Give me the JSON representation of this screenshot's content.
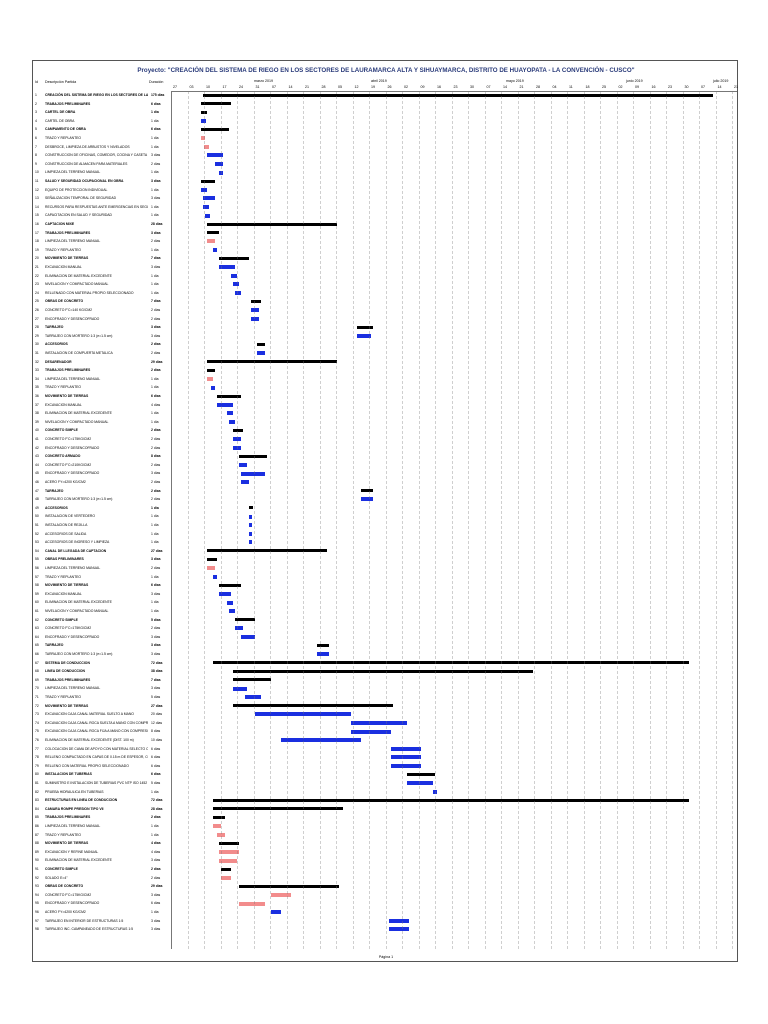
{
  "title": "Proyecto: \"CREACIÓN DEL SISTEMA DE RIEGO EN LOS SECTORES DE LAURAMARCA ALTA Y SIHUAYMARCA, DISTRITO DE HUAYOPATA - LA CONVENCIÓN - CUSCO\"",
  "columns": {
    "id": "Id",
    "name": "Descripción Partida",
    "duration": "Duración"
  },
  "months": [
    "marzo 2019",
    "abril 2019",
    "mayo 2019",
    "junio 2019",
    "julio 2019"
  ],
  "days": [
    "27",
    "03",
    "10",
    "17",
    "24",
    "31",
    "07",
    "14",
    "21",
    "28",
    "05",
    "12",
    "19",
    "26",
    "02",
    "09",
    "16",
    "23",
    "30",
    "07",
    "14",
    "21",
    "28",
    "04",
    "11",
    "18",
    "25",
    "02",
    "09",
    "16",
    "23",
    "30",
    "07",
    "14",
    "21"
  ],
  "footer": "Página 1",
  "colors": {
    "task": "#1a2fe0",
    "critical": "#f28c8c",
    "summary": "#000000"
  },
  "rows": [
    {
      "id": "1",
      "name": "CREACIÓN DEL SISTEMA DE RIEGO EN LOS SECTORES DE LAURAMARCA ALTA Y SIHUAYMARCA",
      "dur": "175 días",
      "summary": true
    },
    {
      "id": "2",
      "name": "TRABAJOS PRELIMINARES",
      "dur": "6 días",
      "summary": true
    },
    {
      "id": "3",
      "name": "CARTEL DE OBRA",
      "dur": "1 día",
      "summary": true
    },
    {
      "id": "4",
      "name": "CARTEL DE OBRA",
      "dur": "1 día"
    },
    {
      "id": "5",
      "name": "CAMPAMENTO DE OBRA",
      "dur": "6 días",
      "summary": true
    },
    {
      "id": "6",
      "name": "TRAZO Y REPLANTEO",
      "dur": "1 día"
    },
    {
      "id": "7",
      "name": "DESBROCE, LIMPIEZA DE ARBUSTOS Y NIVELADOS",
      "dur": "1 día"
    },
    {
      "id": "8",
      "name": "CONSTRUCCION DE OFICINAS, COMEDOR, COCINA Y CASETA DE GUARDIANIA",
      "dur": "3 días"
    },
    {
      "id": "9",
      "name": "CONSTRUCCION DE ALMACEN PARA MATERIALES",
      "dur": "2 días"
    },
    {
      "id": "10",
      "name": "LIMPIEZA DEL TERRENO MANUAL",
      "dur": "1 día"
    },
    {
      "id": "11",
      "name": "SALUD Y SEGURIDAD OCUPACIONAL EN OBRA",
      "dur": "3 días",
      "summary": true
    },
    {
      "id": "12",
      "name": "EQUIPO DE PROTECCION INDIVIDUAL",
      "dur": "1 día"
    },
    {
      "id": "13",
      "name": "SEÑALIZACION TEMPORAL DE SEGURIDAD",
      "dur": "3 días"
    },
    {
      "id": "14",
      "name": "RECURSOS PARA RESPUESTAS ANTE EMERGENCIAS EN SEGURIDAD Y SALUD DURANTE EL TRABAJO",
      "dur": "1 día"
    },
    {
      "id": "15",
      "name": "CAPACITACION EN SALUD Y SEGURIDAD",
      "dur": "1 día"
    },
    {
      "id": "16",
      "name": "CAPTACION MIXE",
      "dur": "28 días",
      "summary": true
    },
    {
      "id": "17",
      "name": "TRABAJOS PRELIMINARES",
      "dur": "3 días",
      "summary": true
    },
    {
      "id": "18",
      "name": "LIMPIEZA DEL TERRENO MANUAL",
      "dur": "2 días"
    },
    {
      "id": "19",
      "name": "TRAZO Y REPLANTEO",
      "dur": "1 día"
    },
    {
      "id": "20",
      "name": "MOVIMIENTO DE TIERRAS",
      "dur": "7 días",
      "summary": true
    },
    {
      "id": "21",
      "name": "EXCAVACION MANUAL",
      "dur": "3 días"
    },
    {
      "id": "22",
      "name": "ELIMINACION DE MATERIAL EXCEDENTE",
      "dur": "1 día"
    },
    {
      "id": "23",
      "name": "NIVELACION Y COMPACTADO MANUAL",
      "dur": "1 día"
    },
    {
      "id": "24",
      "name": "RELLENADO CON MATERIAL PROPIO SELECCIONADO",
      "dur": "1 día"
    },
    {
      "id": "25",
      "name": "OBRAS DE CONCRETO",
      "dur": "7 días",
      "summary": true
    },
    {
      "id": "26",
      "name": "CONCRETO F'C=140 KG/CM2",
      "dur": "2 días"
    },
    {
      "id": "27",
      "name": "ENCOFRADO Y DESENCOFRADO",
      "dur": "2 días"
    },
    {
      "id": "28",
      "name": "TARRAJEO",
      "dur": "3 días",
      "summary": true
    },
    {
      "id": "29",
      "name": "TARRAJEO CON MORTERO 1:3 (e=1.5 cm)",
      "dur": "3 días"
    },
    {
      "id": "30",
      "name": "ACCESORIOS",
      "dur": "2 días",
      "summary": true
    },
    {
      "id": "31",
      "name": "INSTALACION DE COMPUERTA METALICA",
      "dur": "2 días"
    },
    {
      "id": "32",
      "name": "DESARENADOR",
      "dur": "29 días",
      "summary": true
    },
    {
      "id": "33",
      "name": "TRABAJOS PRELIMINARES",
      "dur": "2 días",
      "summary": true
    },
    {
      "id": "34",
      "name": "LIMPIEZA DEL TERRENO MANUAL",
      "dur": "1 día"
    },
    {
      "id": "35",
      "name": "TRAZO Y REPLANTEO",
      "dur": "1 día"
    },
    {
      "id": "36",
      "name": "MOVIMIENTO DE TIERRAS",
      "dur": "6 días",
      "summary": true
    },
    {
      "id": "37",
      "name": "EXCAVACION MANUAL",
      "dur": "4 días"
    },
    {
      "id": "38",
      "name": "ELIMINACION DE MATERIAL EXCEDENTE",
      "dur": "1 día"
    },
    {
      "id": "39",
      "name": "NIVELACION Y COMPACTADO MANUAL",
      "dur": "1 día"
    },
    {
      "id": "40",
      "name": "CONCRETO SIMPLE",
      "dur": "2 días",
      "summary": true
    },
    {
      "id": "41",
      "name": "CONCRETO F'C=175KG/CM2",
      "dur": "2 días"
    },
    {
      "id": "42",
      "name": "ENCOFRADO Y DESENCOFRADO",
      "dur": "2 días"
    },
    {
      "id": "43",
      "name": "CONCRETO ARMADO",
      "dur": "8 días",
      "summary": true
    },
    {
      "id": "44",
      "name": "CONCRETO F'C=210KG/CM2",
      "dur": "2 días"
    },
    {
      "id": "45",
      "name": "ENCOFRADO Y DESENCOFRADO",
      "dur": "3 días"
    },
    {
      "id": "46",
      "name": "ACERO FY=4200 KG/CM2",
      "dur": "2 días"
    },
    {
      "id": "47",
      "name": "TARRAJEO",
      "dur": "2 días",
      "summary": true
    },
    {
      "id": "48",
      "name": "TARRAJEO CON MORTERO 1:3 (e=1.5 cm)",
      "dur": "2 días"
    },
    {
      "id": "49",
      "name": "ACCESORIOS",
      "dur": "1 día",
      "summary": true
    },
    {
      "id": "50",
      "name": "INSTALACION DE VERTEDERO",
      "dur": "1 día"
    },
    {
      "id": "51",
      "name": "INSTALACION DE REJILLA",
      "dur": "1 día"
    },
    {
      "id": "52",
      "name": "ACCESORIOS DE SALIDA",
      "dur": "1 día"
    },
    {
      "id": "53",
      "name": "ACCESORIOS DE INGRESO Y LIMPIEZA",
      "dur": "1 día"
    },
    {
      "id": "54",
      "name": "CANAL DE LLEGADA DE CAPTACION",
      "dur": "27 días",
      "summary": true
    },
    {
      "id": "55",
      "name": "OBRAS PRELIMINARES",
      "dur": "3 días",
      "summary": true
    },
    {
      "id": "56",
      "name": "LIMPIEZA DEL TERRENO MANUAL",
      "dur": "2 días"
    },
    {
      "id": "57",
      "name": "TRAZO Y REPLANTEO",
      "dur": "1 día"
    },
    {
      "id": "58",
      "name": "MOVIMIENTO DE TIERRAS",
      "dur": "6 días",
      "summary": true
    },
    {
      "id": "59",
      "name": "EXCAVACION MANUAL",
      "dur": "3 días"
    },
    {
      "id": "60",
      "name": "ELIMINACION DE MATERIAL EXCEDENTE",
      "dur": "1 día"
    },
    {
      "id": "61",
      "name": "NIVELACION Y COMPACTADO MANUAL",
      "dur": "1 día"
    },
    {
      "id": "62",
      "name": "CONCRETO SIMPLE",
      "dur": "5 días",
      "summary": true
    },
    {
      "id": "63",
      "name": "CONCRETO F'C=175KG/CM2",
      "dur": "2 días"
    },
    {
      "id": "64",
      "name": "ENCOFRADO Y DESENCOFRADO",
      "dur": "3 días"
    },
    {
      "id": "65",
      "name": "TARRAJEO",
      "dur": "3 días",
      "summary": true
    },
    {
      "id": "66",
      "name": "TARRAJEO CON MORTERO 1:3 (e=1.5 cm)",
      "dur": "3 días"
    },
    {
      "id": "67",
      "name": "SISTEMA DE CONDUCCION",
      "dur": "72 días",
      "summary": true
    },
    {
      "id": "68",
      "name": "LINEA DE CONDUCCION",
      "dur": "38 días",
      "summary": true
    },
    {
      "id": "69",
      "name": "TRABAJOS PRELIMINARES",
      "dur": "7 días",
      "summary": true
    },
    {
      "id": "70",
      "name": "LIMPIEZA DEL TERRENO MANUAL",
      "dur": "3 días"
    },
    {
      "id": "71",
      "name": "TRAZO Y REPLANTEO",
      "dur": "5 días"
    },
    {
      "id": "72",
      "name": "MOVIMIENTO DE TIERRAS",
      "dur": "27 días",
      "summary": true
    },
    {
      "id": "73",
      "name": "EXCAVACION CAJA CANAL MATERIAL SUELTO A MANO",
      "dur": "20 días"
    },
    {
      "id": "74",
      "name": "EXCAVACION CAJA CANAL ROCA SUELTA A MANO CON COMPRESORA",
      "dur": "12 días"
    },
    {
      "id": "75",
      "name": "EXCAVACION CAJA CANAL ROCA FIJA A MANO CON COMPRESORA",
      "dur": "8 días"
    },
    {
      "id": "76",
      "name": "ELIMINACION DE MATERIAL EXCEDENTE (DIST. 100 m)",
      "dur": "10 días"
    },
    {
      "id": "77",
      "name": "COLOCACION DE CAMA DE APOYO CON MATERIAL SELECTO COMPACTADO A MANO EN CAPAS DE 0.15m",
      "dur": "6 días"
    },
    {
      "id": "78",
      "name": "RELLENO COMPACTADO EN CAPAS DE 0.15 m DE ESPESOR, COMPACTADO MANUAL",
      "dur": "6 días"
    },
    {
      "id": "79",
      "name": "RELLENO CON MATERIAL PROPIO SELECCIONADO",
      "dur": "6 días"
    },
    {
      "id": "80",
      "name": "INSTALACION DE TUBERIAS",
      "dur": "6 días",
      "summary": true
    },
    {
      "id": "81",
      "name": "SUMINISTRO E INSTALACION DE TUBERIAS PVC NTP ISO 1452 UF C 7.5 (D 110 mm)",
      "dur": "5 días"
    },
    {
      "id": "82",
      "name": "PRUEBA HIDRAULICA EN TUBERIAS",
      "dur": "1 día"
    },
    {
      "id": "83",
      "name": "ESTRUCTURAS EN LINEA DE CONDUCCION",
      "dur": "72 días",
      "summary": true
    },
    {
      "id": "84",
      "name": "CAMARA ROMPE PRESION TIPO VII",
      "dur": "28 días",
      "summary": true
    },
    {
      "id": "85",
      "name": "TRABAJOS PRELIMINARES",
      "dur": "2 días",
      "summary": true
    },
    {
      "id": "86",
      "name": "LIMPIEZA DEL TERRENO MANUAL",
      "dur": "1 día"
    },
    {
      "id": "87",
      "name": "TRAZO Y REPLANTEO",
      "dur": "1 día"
    },
    {
      "id": "88",
      "name": "MOVIMIENTO DE TIERRAS",
      "dur": "4 días",
      "summary": true
    },
    {
      "id": "89",
      "name": "EXCAVACION Y REFINE MANUAL",
      "dur": "4 días"
    },
    {
      "id": "90",
      "name": "ELIMINACION DE MATERIAL EXCEDENTE",
      "dur": "3 días"
    },
    {
      "id": "91",
      "name": "CONCRETO SIMPLE",
      "dur": "2 días",
      "summary": true
    },
    {
      "id": "92",
      "name": "SOLADO E=4\"",
      "dur": "2 días"
    },
    {
      "id": "93",
      "name": "OBRAS DE CONCRETO",
      "dur": "29 días",
      "summary": true
    },
    {
      "id": "94",
      "name": "CONCRETO F'C=175KG/CM2",
      "dur": "3 días"
    },
    {
      "id": "95",
      "name": "ENCOFRADO Y DESENCOFRADO",
      "dur": "6 días"
    },
    {
      "id": "96",
      "name": "ACERO FY=4200 KG/CM2",
      "dur": "1 día"
    },
    {
      "id": "97",
      "name": "TARRAJEO EN INTERIOR DE ESTRUCTURAS 1:5",
      "dur": "3 días"
    },
    {
      "id": "98",
      "name": "TARRAJEO INC. CAMPANEADO DE ESTRUCTURAS 1:5",
      "dur": "3 días"
    }
  ]
}
